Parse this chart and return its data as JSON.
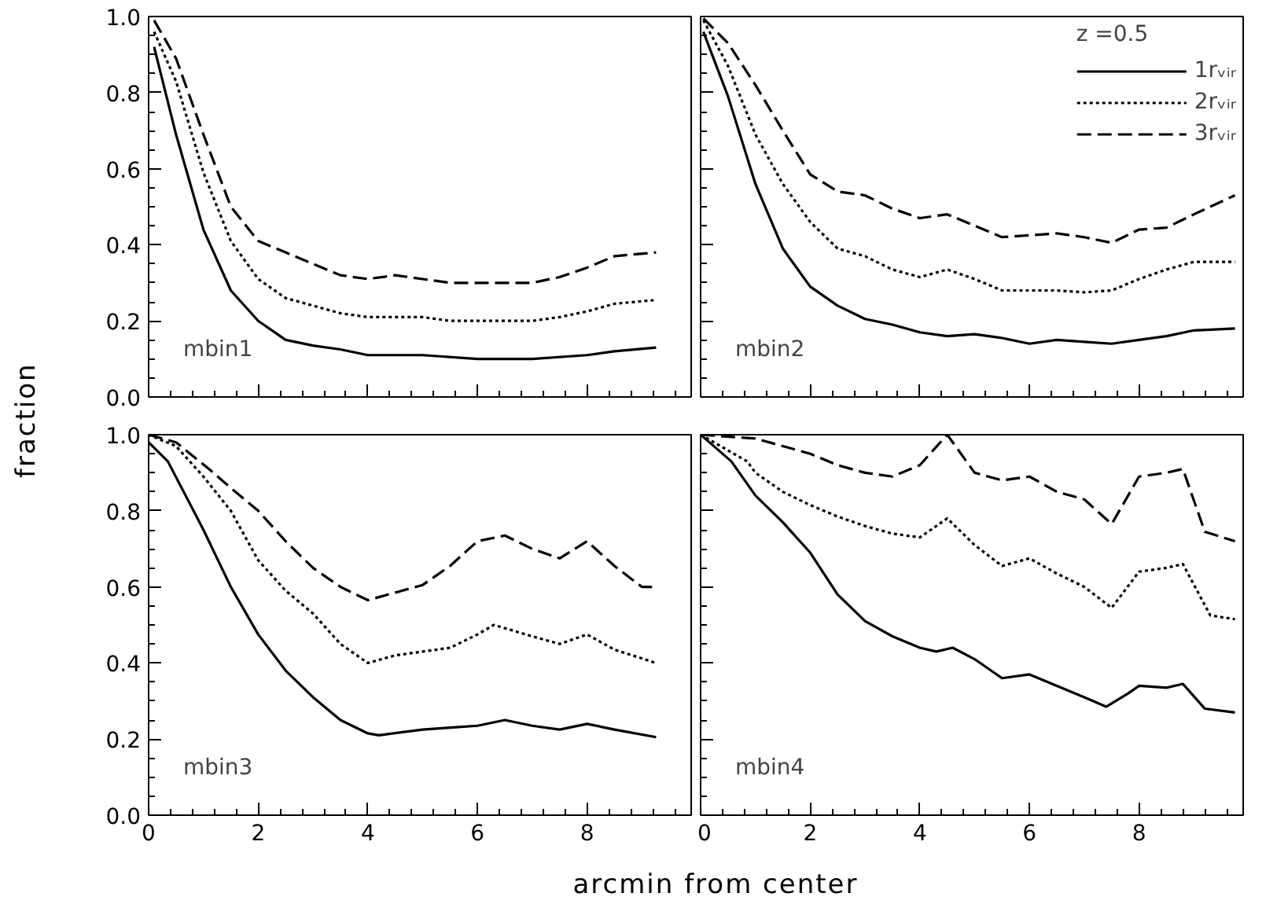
{
  "chart_data": [
    {
      "type": "line",
      "xlim": [
        0,
        9.9
      ],
      "ylim": [
        0,
        1.0
      ],
      "xticks": [
        {
          "value": 0,
          "label": null
        },
        {
          "value": 2,
          "label": null
        },
        {
          "value": 4,
          "label": null
        },
        {
          "value": 6,
          "label": null
        },
        {
          "value": 8,
          "label": null
        }
      ],
      "yticks": [
        {
          "value": 0,
          "label": "0.0"
        },
        {
          "value": 0.2,
          "label": "0.2"
        },
        {
          "value": 0.4,
          "label": "0.4"
        },
        {
          "value": 0.6,
          "label": "0.6"
        },
        {
          "value": 0.8,
          "label": "0.8"
        },
        {
          "value": 1.0,
          "label": "1.0"
        }
      ],
      "tick_labels": "y",
      "annotations": [
        "mbin1"
      ],
      "series": [
        {
          "color": "#000000",
          "line_style": "solid",
          "x": [
            0.1,
            0.5,
            1,
            1.5,
            2,
            2.5,
            3,
            3.5,
            4,
            5,
            6,
            7,
            8,
            8.5,
            9.26
          ],
          "values": [
            0.92,
            0.69,
            0.44,
            0.28,
            0.2,
            0.15,
            0.135,
            0.125,
            0.11,
            0.11,
            0.1,
            0.1,
            0.11,
            0.12,
            0.13
          ]
        },
        {
          "color": "#000000",
          "line_style": "dotted",
          "x": [
            0.1,
            0.5,
            1,
            1.5,
            2,
            2.5,
            3,
            3.5,
            4,
            5,
            5.5,
            6,
            7,
            7.5,
            8,
            8.5,
            9.26
          ],
          "values": [
            0.96,
            0.83,
            0.59,
            0.41,
            0.31,
            0.26,
            0.24,
            0.22,
            0.21,
            0.21,
            0.2,
            0.2,
            0.2,
            0.21,
            0.225,
            0.245,
            0.255
          ]
        },
        {
          "color": "#000000",
          "line_style": "dashed",
          "x": [
            0.1,
            0.5,
            1,
            1.5,
            2,
            2.5,
            3,
            3.5,
            4,
            4.5,
            5,
            5.5,
            6,
            7,
            7.5,
            8,
            8.5,
            9.26
          ],
          "values": [
            0.99,
            0.89,
            0.69,
            0.5,
            0.41,
            0.38,
            0.35,
            0.32,
            0.31,
            0.32,
            0.31,
            0.3,
            0.3,
            0.3,
            0.315,
            0.34,
            0.37,
            0.38
          ]
        }
      ]
    },
    {
      "type": "line",
      "xlim": [
        0,
        9.9
      ],
      "ylim": [
        0,
        1.0
      ],
      "xticks": [
        {
          "value": 0,
          "label": null
        },
        {
          "value": 2,
          "label": null
        },
        {
          "value": 4,
          "label": null
        },
        {
          "value": 6,
          "label": null
        },
        {
          "value": 8,
          "label": null
        }
      ],
      "yticks": [
        {
          "value": 0,
          "label": null
        },
        {
          "value": 0.2,
          "label": null
        },
        {
          "value": 0.4,
          "label": null
        },
        {
          "value": 0.6,
          "label": null
        },
        {
          "value": 0.8,
          "label": null
        },
        {
          "value": 1.0,
          "label": null
        }
      ],
      "tick_labels": false,
      "annotations": [
        "mbin2"
      ],
      "legend": "top right",
      "legend_title": "z =0.5",
      "series": [
        {
          "name": "1rᵥᵢᵣ",
          "color": "#000000",
          "line_style": "solid",
          "x": [
            0.05,
            0.5,
            1,
            1.5,
            2,
            2.5,
            3,
            3.5,
            4,
            4.5,
            5,
            5.5,
            6,
            6.5,
            7,
            7.5,
            8,
            8.5,
            9,
            9.75
          ],
          "values": [
            0.96,
            0.79,
            0.56,
            0.39,
            0.29,
            0.24,
            0.205,
            0.19,
            0.17,
            0.16,
            0.165,
            0.155,
            0.14,
            0.15,
            0.145,
            0.14,
            0.15,
            0.16,
            0.175,
            0.18
          ]
        },
        {
          "name": "2rᵥᵢᵣ",
          "color": "#000000",
          "line_style": "dotted",
          "x": [
            0.05,
            0.5,
            1,
            1.5,
            2,
            2.5,
            3,
            3.5,
            4,
            4.5,
            5,
            5.5,
            6,
            6.5,
            7,
            7.5,
            8,
            8.5,
            9,
            9.75
          ],
          "values": [
            0.99,
            0.87,
            0.69,
            0.56,
            0.46,
            0.39,
            0.37,
            0.335,
            0.315,
            0.335,
            0.31,
            0.28,
            0.28,
            0.28,
            0.275,
            0.28,
            0.31,
            0.335,
            0.355,
            0.355
          ]
        },
        {
          "name": "3rᵥᵢᵣ",
          "color": "#000000",
          "line_style": "dashed",
          "x": [
            0.05,
            0.5,
            1,
            1.5,
            2,
            2.5,
            3,
            3.5,
            4,
            4.5,
            5,
            5.5,
            6,
            6.5,
            7,
            7.5,
            8,
            8.5,
            9,
            9.75
          ],
          "values": [
            0.995,
            0.93,
            0.82,
            0.7,
            0.585,
            0.54,
            0.53,
            0.495,
            0.47,
            0.48,
            0.45,
            0.42,
            0.425,
            0.43,
            0.42,
            0.405,
            0.44,
            0.445,
            0.48,
            0.53
          ]
        }
      ]
    },
    {
      "type": "line",
      "xlim": [
        0,
        9.9
      ],
      "ylim": [
        0,
        1.0
      ],
      "xticks": [
        0,
        2,
        4,
        6,
        8
      ],
      "yticks": [
        {
          "value": 0,
          "label": "0.0"
        },
        {
          "value": 0.2,
          "label": "0.2"
        },
        {
          "value": 0.4,
          "label": "0.4"
        },
        {
          "value": 0.6,
          "label": "0.6"
        },
        {
          "value": 0.8,
          "label": "0.8"
        },
        {
          "value": 1.0,
          "label": "1.0"
        }
      ],
      "annotations": [
        "mbin3"
      ],
      "xlabel": "arcmin from center",
      "ylabel": "fraction",
      "series": [
        {
          "color": "#000000",
          "line_style": "solid",
          "x": [
            0,
            0.35,
            1,
            1.5,
            2,
            2.5,
            3,
            3.5,
            4,
            4.2,
            5,
            5.5,
            6,
            6.5,
            7,
            7.5,
            8,
            8.5,
            9.26
          ],
          "values": [
            0.98,
            0.93,
            0.75,
            0.6,
            0.475,
            0.38,
            0.31,
            0.25,
            0.215,
            0.21,
            0.225,
            0.23,
            0.235,
            0.25,
            0.235,
            0.225,
            0.24,
            0.225,
            0.205
          ]
        },
        {
          "color": "#000000",
          "line_style": "dotted",
          "x": [
            0,
            0.5,
            1,
            1.5,
            2,
            2.5,
            3,
            3.5,
            4,
            4.5,
            5,
            5.5,
            6,
            6.3,
            7,
            7.5,
            8,
            8.5,
            9.26
          ],
          "values": [
            1.0,
            0.97,
            0.89,
            0.8,
            0.67,
            0.59,
            0.53,
            0.45,
            0.4,
            0.42,
            0.43,
            0.44,
            0.475,
            0.5,
            0.47,
            0.45,
            0.475,
            0.435,
            0.4
          ]
        },
        {
          "color": "#000000",
          "line_style": "dashed",
          "x": [
            0,
            0.5,
            1.1,
            1.5,
            2,
            2.5,
            3,
            3.5,
            4,
            4.5,
            5,
            5.5,
            6,
            6.5,
            7,
            7.5,
            8,
            8.5,
            9,
            9.26
          ],
          "values": [
            1.0,
            0.98,
            0.91,
            0.86,
            0.8,
            0.72,
            0.65,
            0.6,
            0.565,
            0.585,
            0.605,
            0.655,
            0.72,
            0.735,
            0.7,
            0.675,
            0.72,
            0.655,
            0.6,
            0.6
          ]
        }
      ]
    },
    {
      "type": "line",
      "xlim": [
        0,
        9.9
      ],
      "ylim": [
        0,
        1.0
      ],
      "xticks": [
        0,
        2,
        4,
        6,
        8
      ],
      "yticks": [
        {
          "value": 0,
          "label": null
        },
        {
          "value": 0.2,
          "label": null
        },
        {
          "value": 0.4,
          "label": null
        },
        {
          "value": 0.6,
          "label": null
        },
        {
          "value": 0.8,
          "label": null
        },
        {
          "value": 1.0,
          "label": null
        }
      ],
      "tick_labels": "x",
      "annotations": [
        "mbin4"
      ],
      "series": [
        {
          "color": "#000000",
          "line_style": "solid",
          "x": [
            0,
            0.56,
            1,
            1.5,
            2,
            2.5,
            3,
            3.5,
            4,
            4.3,
            4.6,
            5,
            5.5,
            6,
            6.5,
            7,
            7.4,
            7.8,
            8,
            8.5,
            8.8,
            9.2,
            9.75
          ],
          "values": [
            1.0,
            0.93,
            0.84,
            0.77,
            0.69,
            0.58,
            0.51,
            0.47,
            0.44,
            0.43,
            0.44,
            0.41,
            0.36,
            0.37,
            0.34,
            0.31,
            0.285,
            0.32,
            0.34,
            0.335,
            0.345,
            0.28,
            0.27
          ]
        },
        {
          "color": "#000000",
          "line_style": "dotted",
          "x": [
            0,
            0.85,
            1,
            1.5,
            2,
            2.5,
            3,
            3.5,
            4,
            4.5,
            5,
            5.5,
            6,
            6.5,
            7,
            7.5,
            8,
            8.5,
            8.8,
            9.3,
            9.75
          ],
          "values": [
            1.0,
            0.93,
            0.9,
            0.85,
            0.815,
            0.785,
            0.76,
            0.74,
            0.73,
            0.78,
            0.71,
            0.655,
            0.675,
            0.635,
            0.6,
            0.545,
            0.64,
            0.65,
            0.66,
            0.525,
            0.515
          ]
        },
        {
          "color": "#000000",
          "line_style": "dashed",
          "x": [
            0,
            1,
            2,
            2.5,
            3,
            3.5,
            4,
            4.5,
            5,
            5.5,
            6,
            6.5,
            7,
            7.5,
            8,
            8.5,
            8.8,
            9.2,
            9.75
          ],
          "values": [
            1.0,
            0.99,
            0.95,
            0.92,
            0.9,
            0.89,
            0.92,
            1.0,
            0.9,
            0.88,
            0.89,
            0.85,
            0.83,
            0.765,
            0.89,
            0.9,
            0.91,
            0.745,
            0.72
          ]
        }
      ]
    }
  ]
}
